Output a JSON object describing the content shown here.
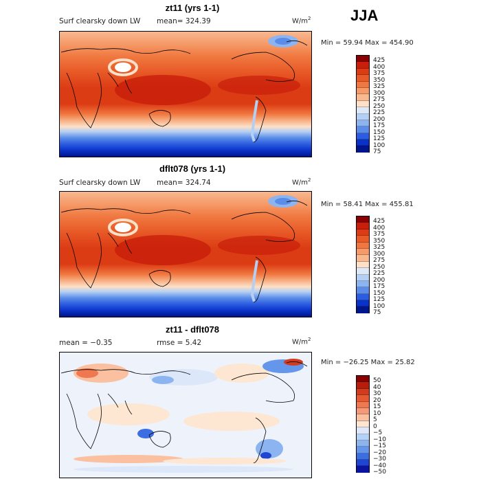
{
  "season": "JJA",
  "panels": [
    {
      "title": "zt11 (yrs 1-1)",
      "left_label": "Surf clearsky down LW",
      "stat1": "mean= 324.39",
      "stat2": "",
      "units_base": "W/m",
      "units_exp": "2",
      "minmax": "Min =  59.94 Max = 454.90"
    },
    {
      "title": "dflt078 (yrs 1-1)",
      "left_label": "Surf clearsky down LW",
      "stat1": "mean= 324.74",
      "stat2": "",
      "units_base": "W/m",
      "units_exp": "2",
      "minmax": "Min =  58.41 Max = 455.81"
    },
    {
      "title": "zt11 - dflt078",
      "left_label": "",
      "stat1": "mean =  −0.35",
      "stat2": "rmse =   5.42",
      "units_base": "W/m",
      "units_exp": "2",
      "minmax": "Min = −26.25 Max =  25.82"
    }
  ],
  "chart_data": [
    {
      "type": "heatmap",
      "title": "zt11 (yrs 1-1)",
      "variable": "Surf clearsky down LW",
      "units": "W/m2",
      "mean": 324.39,
      "min": 59.94,
      "max": 454.9,
      "colorbar_levels": [
        "425",
        "400",
        "375",
        "350",
        "325",
        "300",
        "275",
        "250",
        "225",
        "200",
        "175",
        "150",
        "125",
        "100",
        "75"
      ],
      "colorbar_colors": [
        "#8b0000",
        "#c81e0a",
        "#dc3c14",
        "#e85a28",
        "#f07840",
        "#f59a68",
        "#f8b890",
        "#fde0c8",
        "#dce8f8",
        "#b4cff4",
        "#8cb4f0",
        "#5a8ce8",
        "#2c5ce0",
        "#0a32c8",
        "#00148c"
      ]
    },
    {
      "type": "heatmap",
      "title": "dflt078 (yrs 1-1)",
      "variable": "Surf clearsky down LW",
      "units": "W/m2",
      "mean": 324.74,
      "min": 58.41,
      "max": 455.81,
      "colorbar_levels": [
        "425",
        "400",
        "375",
        "350",
        "325",
        "300",
        "275",
        "250",
        "225",
        "200",
        "175",
        "150",
        "125",
        "100",
        "75"
      ],
      "colorbar_colors": [
        "#8b0000",
        "#c81e0a",
        "#dc3c14",
        "#e85a28",
        "#f07840",
        "#f59a68",
        "#f8b890",
        "#fde0c8",
        "#dce8f8",
        "#b4cff4",
        "#8cb4f0",
        "#5a8ce8",
        "#2c5ce0",
        "#0a32c8",
        "#00148c"
      ]
    },
    {
      "type": "heatmap",
      "title": "zt11 - dflt078",
      "units": "W/m2",
      "mean": -0.35,
      "rmse": 5.42,
      "min": -26.25,
      "max": 25.82,
      "colorbar_levels": [
        "50",
        "40",
        "30",
        "20",
        "15",
        "10",
        "5",
        "0",
        "−5",
        "−10",
        "−15",
        "−20",
        "−30",
        "−40",
        "−50"
      ],
      "colorbar_colors": [
        "#8b0000",
        "#b41e0a",
        "#d23c1e",
        "#e65a32",
        "#f07850",
        "#f59a78",
        "#fac0a0",
        "#fde6d2",
        "#dce8fa",
        "#b4d2f5",
        "#8cb4f0",
        "#6496eb",
        "#3c6ee1",
        "#1e46d2",
        "#0a14a0"
      ]
    }
  ]
}
